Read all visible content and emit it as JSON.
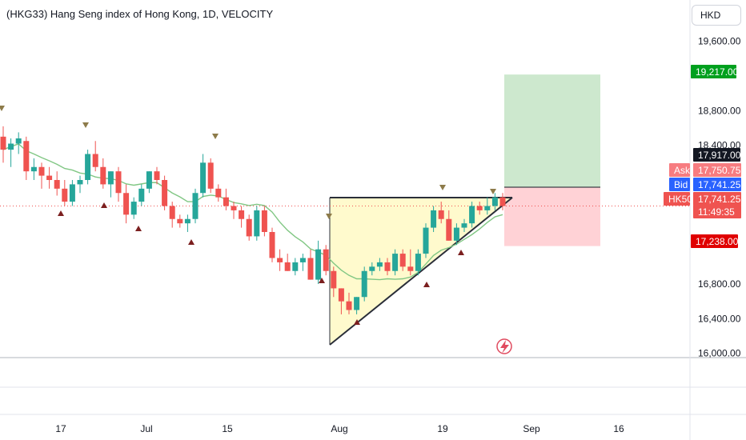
{
  "header": {
    "title": "(HKG33) Hang Seng index of Hong Kong, 1D, VELOCITY",
    "currency": "HKD"
  },
  "colors": {
    "up": "#26a69a",
    "down": "#ef5350",
    "ma": "#81c784",
    "triangle_fill": "#fff9c4",
    "target_fill": "#c8e6c9",
    "stop_fill": "#ffcdd2"
  },
  "price_tags": {
    "target": "19,217.00",
    "entry": "17,917.00",
    "ask_label": "Ask",
    "ask": "17,750.75",
    "bid_label": "Bid",
    "bid": "17,741.25",
    "symbol_label": "HK50",
    "last": "17,741.25",
    "countdown": "11:49:35",
    "stop": "17,238.00"
  },
  "chart_data": {
    "type": "candlestick",
    "title": "(HKG33) Hang Seng index of Hong Kong, 1D, VELOCITY",
    "y_axis": {
      "ticks": [
        "19,600.00",
        "18,800.00",
        "18,400.00",
        "16,800.00",
        "16,400.00",
        "16,000.00"
      ],
      "tick_values": [
        19600,
        18800,
        18400,
        16800,
        16400,
        16000
      ],
      "range": [
        15960,
        19800
      ]
    },
    "x_axis": {
      "ticks": [
        "17",
        "Jul",
        "15",
        "Aug",
        "19",
        "Sep",
        "16"
      ]
    },
    "ohlc": [
      [
        18500,
        18620,
        18200,
        18350
      ],
      [
        18350,
        18480,
        18150,
        18420
      ],
      [
        18420,
        18550,
        18300,
        18480
      ],
      [
        18450,
        18500,
        18000,
        18100
      ],
      [
        18100,
        18250,
        18000,
        18150
      ],
      [
        18150,
        18200,
        17900,
        18050
      ],
      [
        18050,
        18150,
        17900,
        18000
      ],
      [
        18000,
        18100,
        17820,
        17900
      ],
      [
        17900,
        18000,
        17700,
        17750
      ],
      [
        17750,
        18000,
        17700,
        17950
      ],
      [
        17950,
        18050,
        17850,
        18000
      ],
      [
        18000,
        18350,
        17950,
        18300
      ],
      [
        18300,
        18450,
        18100,
        18150
      ],
      [
        18150,
        18250,
        17900,
        17950
      ],
      [
        17950,
        18100,
        17800,
        18100
      ],
      [
        18100,
        18150,
        17750,
        17850
      ],
      [
        17850,
        17950,
        17500,
        17600
      ],
      [
        17600,
        17800,
        17550,
        17750
      ],
      [
        17750,
        17950,
        17700,
        17900
      ],
      [
        17900,
        18100,
        17850,
        18100
      ],
      [
        18100,
        18150,
        17950,
        18000
      ],
      [
        18000,
        18050,
        17650,
        17700
      ],
      [
        17700,
        17750,
        17450,
        17550
      ],
      [
        17550,
        17600,
        17450,
        17500
      ],
      [
        17500,
        17600,
        17400,
        17550
      ],
      [
        17550,
        17900,
        17500,
        17850
      ],
      [
        17850,
        18300,
        17800,
        18200
      ],
      [
        18200,
        18250,
        17850,
        17900
      ],
      [
        17900,
        17950,
        17750,
        17800
      ],
      [
        17800,
        17900,
        17650,
        17700
      ],
      [
        17700,
        17750,
        17550,
        17650
      ],
      [
        17650,
        17700,
        17450,
        17550
      ],
      [
        17550,
        17600,
        17300,
        17350
      ],
      [
        17350,
        17700,
        17300,
        17650
      ],
      [
        17650,
        17700,
        17350,
        17400
      ],
      [
        17400,
        17450,
        17050,
        17100
      ],
      [
        17100,
        17200,
        16950,
        17050
      ],
      [
        17050,
        17150,
        16950,
        16950
      ],
      [
        16950,
        17100,
        16900,
        17050
      ],
      [
        17050,
        17150,
        16950,
        17100
      ],
      [
        17100,
        17200,
        16850,
        16850
      ],
      [
        16850,
        17300,
        16800,
        17200
      ],
      [
        17200,
        17250,
        16900,
        16950
      ],
      [
        16950,
        17000,
        16650,
        16750
      ],
      [
        16750,
        16750,
        16450,
        16600
      ],
      [
        16600,
        16700,
        16450,
        16500
      ],
      [
        16500,
        16650,
        16450,
        16650
      ],
      [
        16650,
        17000,
        16600,
        16950
      ],
      [
        16950,
        17050,
        16900,
        17000
      ],
      [
        17000,
        17100,
        16950,
        17050
      ],
      [
        17050,
        17100,
        16900,
        16950
      ],
      [
        16950,
        17200,
        16900,
        17150
      ],
      [
        17150,
        17200,
        16950,
        17000
      ],
      [
        17000,
        17200,
        16900,
        16950
      ],
      [
        16950,
        17200,
        16900,
        17150
      ],
      [
        17150,
        17500,
        17100,
        17450
      ],
      [
        17450,
        17700,
        17400,
        17650
      ],
      [
        17650,
        17750,
        17500,
        17550
      ],
      [
        17550,
        17650,
        17300,
        17300
      ],
      [
        17300,
        17500,
        17250,
        17450
      ],
      [
        17450,
        17550,
        17400,
        17500
      ],
      [
        17500,
        17750,
        17450,
        17700
      ],
      [
        17700,
        17750,
        17600,
        17650
      ],
      [
        17650,
        17800,
        17600,
        17700
      ],
      [
        17700,
        17850,
        17650,
        17800
      ],
      [
        17800,
        17850,
        17650,
        17700
      ]
    ],
    "ma_type": "moving average",
    "annotations": [
      "ascending triangle pattern",
      "long position: entry 17,917.00, target 19,217.00, stop 17,238.00"
    ]
  }
}
